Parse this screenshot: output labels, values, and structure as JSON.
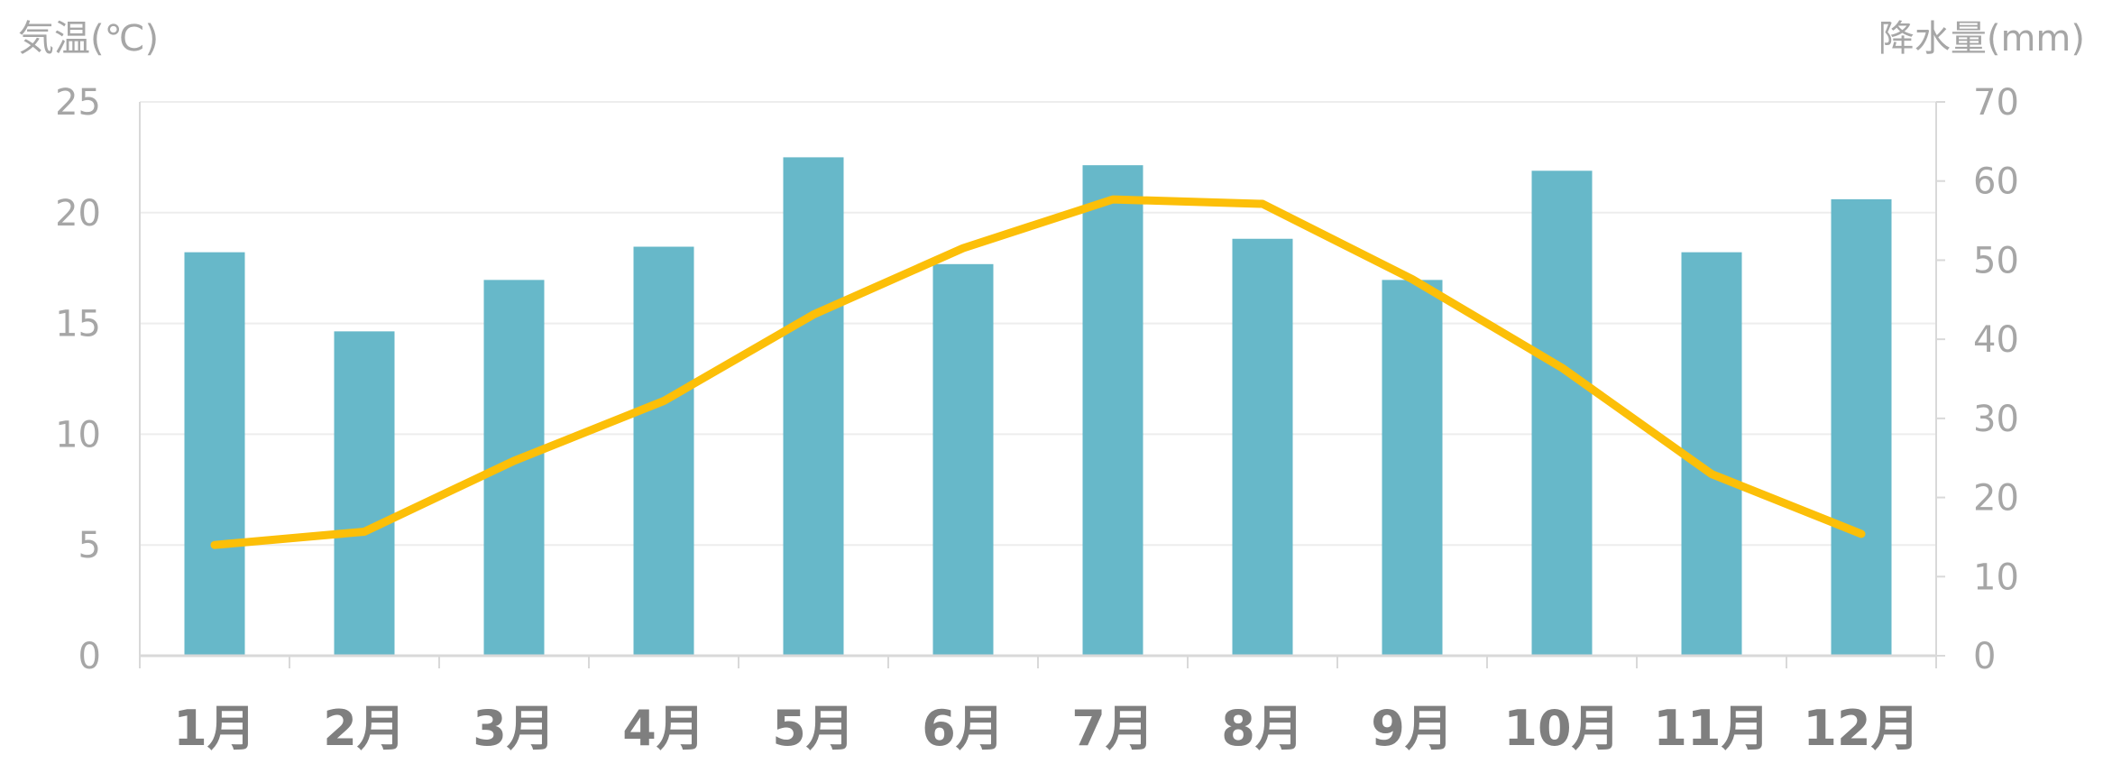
{
  "chart_data": {
    "type": "bar",
    "title": "",
    "categories": [
      "1月",
      "2月",
      "3月",
      "4月",
      "5月",
      "6月",
      "7月",
      "8月",
      "9月",
      "10月",
      "11月",
      "12月"
    ],
    "y_left": {
      "label": "気温(℃)",
      "range": [
        0,
        25
      ],
      "ticks": [
        "0",
        "5",
        "10",
        "15",
        "20",
        "25"
      ]
    },
    "y_right": {
      "label": "降水量(mm)",
      "range": [
        0,
        70
      ],
      "ticks": [
        "0",
        "10",
        "20",
        "30",
        "40",
        "50",
        "60",
        "70"
      ]
    },
    "grid": true,
    "legend": "none",
    "series": [
      {
        "type": "bar",
        "axis": "right",
        "color": "#67b8c9",
        "values": [
          51,
          41,
          47.5,
          51.7,
          63,
          49.5,
          62,
          52.7,
          47.5,
          61.3,
          51,
          57.7
        ]
      },
      {
        "type": "line",
        "axis": "left",
        "color": "#fcbf08",
        "values": [
          5.0,
          5.6,
          8.8,
          11.5,
          15.4,
          18.4,
          20.6,
          20.4,
          17.0,
          13.0,
          8.2,
          5.5
        ]
      }
    ]
  }
}
